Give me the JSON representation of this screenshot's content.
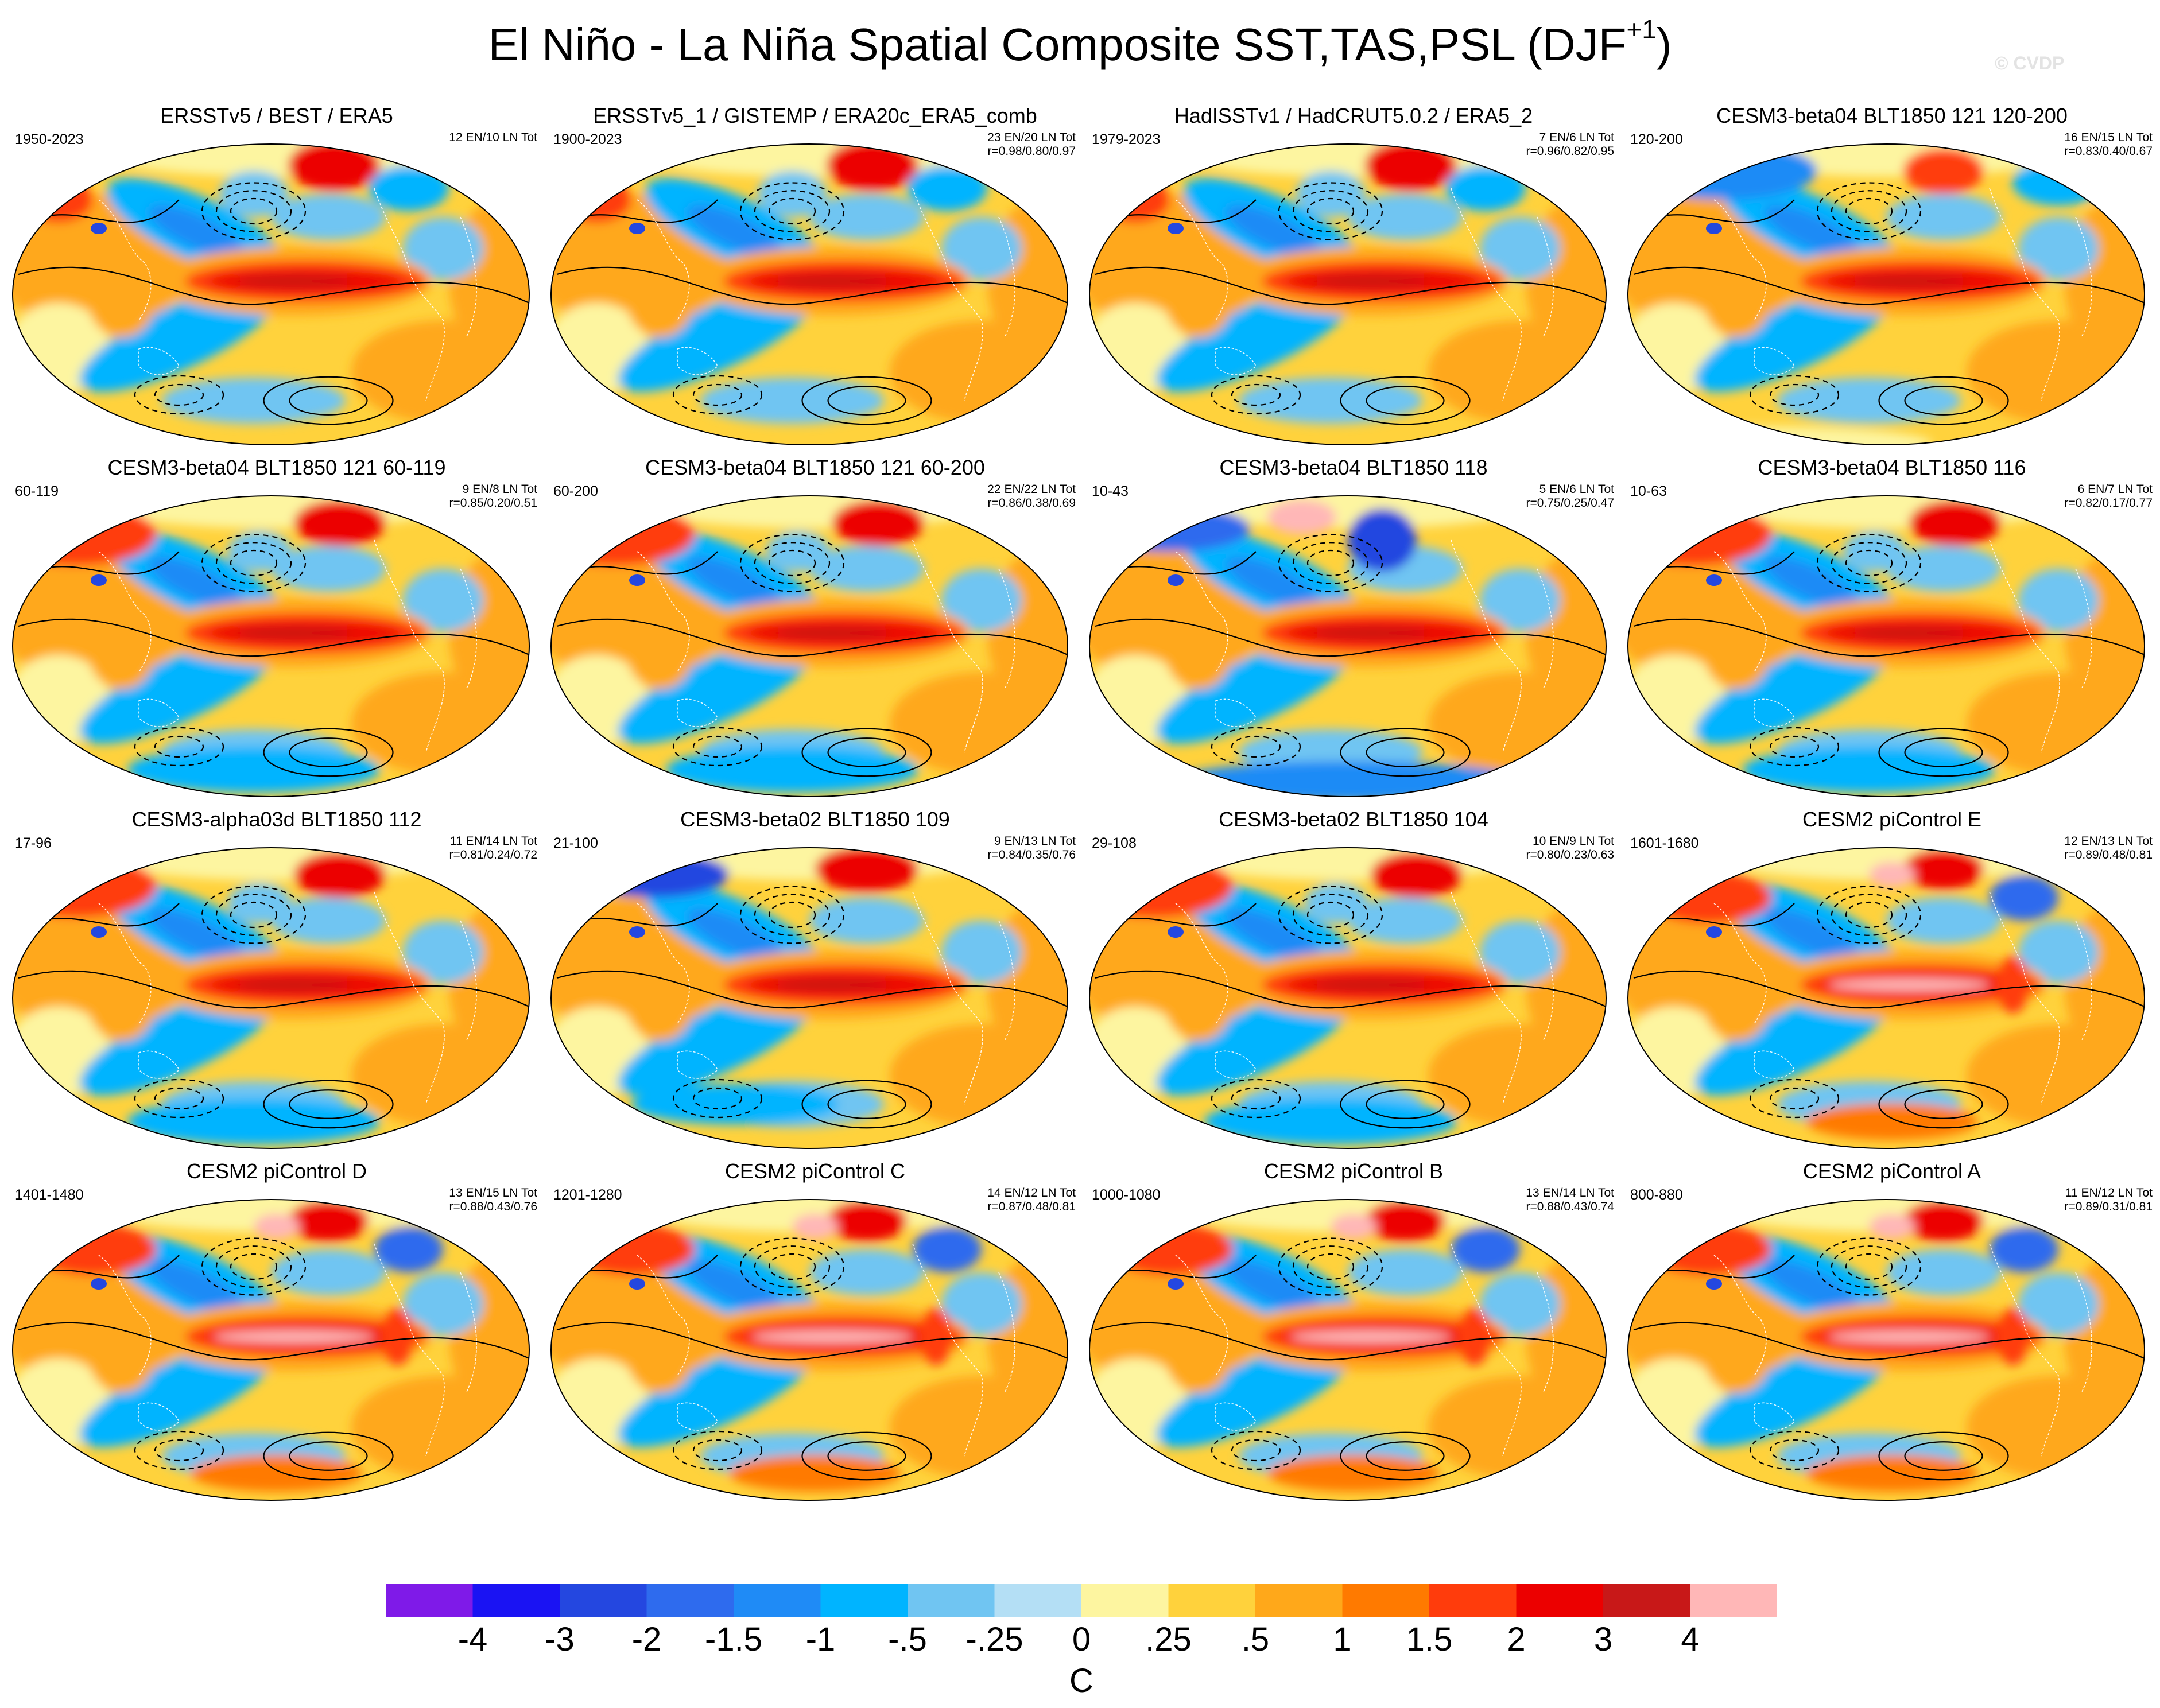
{
  "figure": {
    "title": "El Niño - La Niña Spatial Composite SST,TAS,PSL (DJF",
    "title_sup": "+1",
    "title_close": ")",
    "watermark": "© CVDP"
  },
  "panels": [
    {
      "title": "ERSSTv5 / BEST / ERA5",
      "years": "1950-2023",
      "counts": "12 EN/10 LN Tot",
      "corr": "",
      "pattern": "obs_warm_arctic"
    },
    {
      "title": "ERSSTv5_1 / GISTEMP / ERA20c_ERA5_comb",
      "years": "1900-2023",
      "counts": "23 EN/20 LN Tot",
      "corr": "r=0.98/0.80/0.97",
      "pattern": "obs_warm_arctic"
    },
    {
      "title": "HadISSTv1 / HadCRUT5.0.2 / ERA5_2",
      "years": "1979-2023",
      "counts": "7 EN/6 LN Tot",
      "corr": "r=0.96/0.82/0.95",
      "pattern": "obs_warm_arctic"
    },
    {
      "title": "CESM3-beta04 BLT1850 121 120-200",
      "years": "120-200",
      "counts": "16 EN/15 LN Tot",
      "corr": "r=0.83/0.40/0.67",
      "pattern": "model_cool_north"
    },
    {
      "title": "CESM3-beta04 BLT1850 121 60-119",
      "years": "60-119",
      "counts": "9 EN/8 LN Tot",
      "corr": "r=0.85/0.20/0.51",
      "pattern": "model_warm_north"
    },
    {
      "title": "CESM3-beta04 BLT1850 121 60-200",
      "years": "60-200",
      "counts": "22 EN/22 LN Tot",
      "corr": "r=0.86/0.38/0.69",
      "pattern": "model_warm_north"
    },
    {
      "title": "CESM3-beta04 BLT1850 118",
      "years": "10-43",
      "counts": "5 EN/6 LN Tot",
      "corr": "r=0.75/0.25/0.47",
      "pattern": "model_cold_north"
    },
    {
      "title": "CESM3-beta04 BLT1850 116",
      "years": "10-63",
      "counts": "6 EN/7 LN Tot",
      "corr": "r=0.82/0.17/0.77",
      "pattern": "model_warm_north"
    },
    {
      "title": "CESM3-alpha03d BLT1850 112",
      "years": "17-96",
      "counts": "11 EN/14 LN Tot",
      "corr": "r=0.81/0.24/0.72",
      "pattern": "model_warm_north"
    },
    {
      "title": "CESM3-beta02 BLT1850 109",
      "years": "21-100",
      "counts": "9 EN/13 LN Tot",
      "corr": "r=0.84/0.35/0.76",
      "pattern": "model_cold_eurasia"
    },
    {
      "title": "CESM3-beta02 BLT1850 104",
      "years": "29-108",
      "counts": "10 EN/9 LN Tot",
      "corr": "r=0.80/0.23/0.63",
      "pattern": "model_warm_north"
    },
    {
      "title": "CESM2 piControl E",
      "years": "1601-1680",
      "counts": "12 EN/13 LN Tot",
      "corr": "r=0.89/0.48/0.81",
      "pattern": "cesm2_strong"
    },
    {
      "title": "CESM2 piControl D",
      "years": "1401-1480",
      "counts": "13 EN/15 LN Tot",
      "corr": "r=0.88/0.43/0.76",
      "pattern": "cesm2_strong"
    },
    {
      "title": "CESM2 piControl C",
      "years": "1201-1280",
      "counts": "14 EN/12 LN Tot",
      "corr": "r=0.87/0.48/0.81",
      "pattern": "cesm2_strong"
    },
    {
      "title": "CESM2 piControl B",
      "years": "1000-1080",
      "counts": "13 EN/14 LN Tot",
      "corr": "r=0.88/0.43/0.74",
      "pattern": "cesm2_strong"
    },
    {
      "title": "CESM2 piControl A",
      "years": "800-880",
      "counts": "11 EN/12 LN Tot",
      "corr": "r=0.89/0.31/0.81",
      "pattern": "cesm2_strong"
    }
  ],
  "colorbar": {
    "unit": "C",
    "colors": [
      "#7f1ae8",
      "#1a13f3",
      "#2447e0",
      "#2e6bee",
      "#1f8bf6",
      "#00b4ff",
      "#70c5f2",
      "#b4dff5",
      "#fdf5a0",
      "#ffd23c",
      "#ffa81a",
      "#ff7a00",
      "#ff3c0c",
      "#ec0000",
      "#c81818",
      "#ffb7b7"
    ],
    "labels": [
      "-4",
      "-3",
      "-2",
      "-1.5",
      "-1",
      "-.5",
      "-.25",
      "0",
      ".25",
      ".5",
      "1",
      "1.5",
      "2",
      "3",
      "4"
    ]
  }
}
